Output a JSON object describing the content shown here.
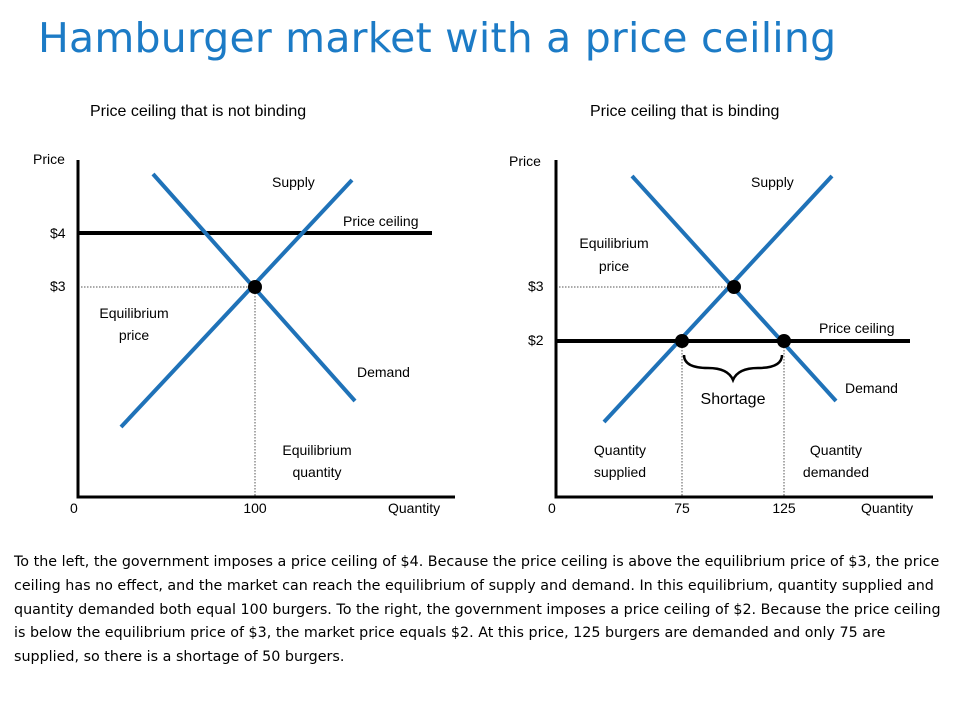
{
  "title": "Hamburger market with a price ceiling",
  "chart_data": [
    {
      "type": "line",
      "title": "Price ceiling that is not binding",
      "ylabel": "Price",
      "xlabel": "Quantity",
      "origin_label": "0",
      "y_tick_labels": [
        "$4",
        "$3"
      ],
      "x_tick_labels": [
        "100"
      ],
      "series": [
        {
          "name": "Supply",
          "points": [
            [
              40,
              1.6
            ],
            [
              175,
              4.55
            ]
          ]
        },
        {
          "name": "Demand",
          "points": [
            [
              55,
              4.5
            ],
            [
              190,
              1.9
            ]
          ]
        },
        {
          "name": "Price ceiling",
          "points": [
            [
              0,
              4
            ],
            [
              210,
              4
            ]
          ]
        }
      ],
      "equilibrium": {
        "x": 100,
        "y": 3
      },
      "annotations": [
        "Equilibrium price",
        "Equilibrium quantity"
      ]
    },
    {
      "type": "line",
      "title": "Price ceiling that is binding",
      "ylabel": "Price",
      "xlabel": "Quantity",
      "origin_label": "0",
      "y_tick_labels": [
        "$3",
        "$2"
      ],
      "x_tick_labels": [
        "75",
        "125"
      ],
      "series": [
        {
          "name": "Supply",
          "points": [
            [
              30,
              1.3
            ],
            [
              165,
              4.5
            ]
          ]
        },
        {
          "name": "Demand",
          "points": [
            [
              45,
              4.4
            ],
            [
              175,
              1.4
            ]
          ]
        },
        {
          "name": "Price ceiling",
          "points": [
            [
              0,
              2
            ],
            [
              225,
              2
            ]
          ]
        }
      ],
      "equilibrium": {
        "x": 100,
        "y": 3
      },
      "points_at_ceiling": [
        {
          "x": 75,
          "y": 2
        },
        {
          "x": 125,
          "y": 2
        }
      ],
      "annotations": [
        "Equilibrium price",
        "Shortage",
        "Quantity supplied",
        "Quantity demanded"
      ]
    }
  ],
  "labels": {
    "left": {
      "price": "Price",
      "quantity": "Quantity",
      "zero": "0",
      "p4": "$4",
      "p3": "$3",
      "q100": "100",
      "supply": "Supply",
      "demand": "Demand",
      "ceiling": "Price ceiling",
      "eq_price_1": "Equilibrium",
      "eq_price_2": "price",
      "eq_qty_1": "Equilibrium",
      "eq_qty_2": "quantity"
    },
    "right": {
      "price": "Price",
      "quantity": "Quantity",
      "zero": "0",
      "p3": "$3",
      "p2": "$2",
      "q75": "75",
      "q125": "125",
      "supply": "Supply",
      "demand": "Demand",
      "ceiling": "Price ceiling",
      "eq_price_1": "Equilibrium",
      "eq_price_2": "price",
      "shortage": "Shortage",
      "qs_1": "Quantity",
      "qs_2": "supplied",
      "qd_1": "Quantity",
      "qd_2": "demanded"
    }
  },
  "caption": "To the left, the government imposes a price ceiling of $4. Because the price ceiling is above the equilibrium price of $3, the price ceiling has no effect, and the market can reach the equilibrium of supply and demand. In this equilibrium, quantity supplied and quantity demanded both equal 100 burgers. To the right, the government imposes a price ceiling of $2. Because the price ceiling is below the equilibrium price of $3, the market price equals $2. At this price, 125 burgers are demanded and only 75 are supplied, so there is a shortage of 50 burgers.",
  "colors": {
    "title": "#1c7bc6",
    "curve": "#1f72b8",
    "axis": "#000000"
  }
}
